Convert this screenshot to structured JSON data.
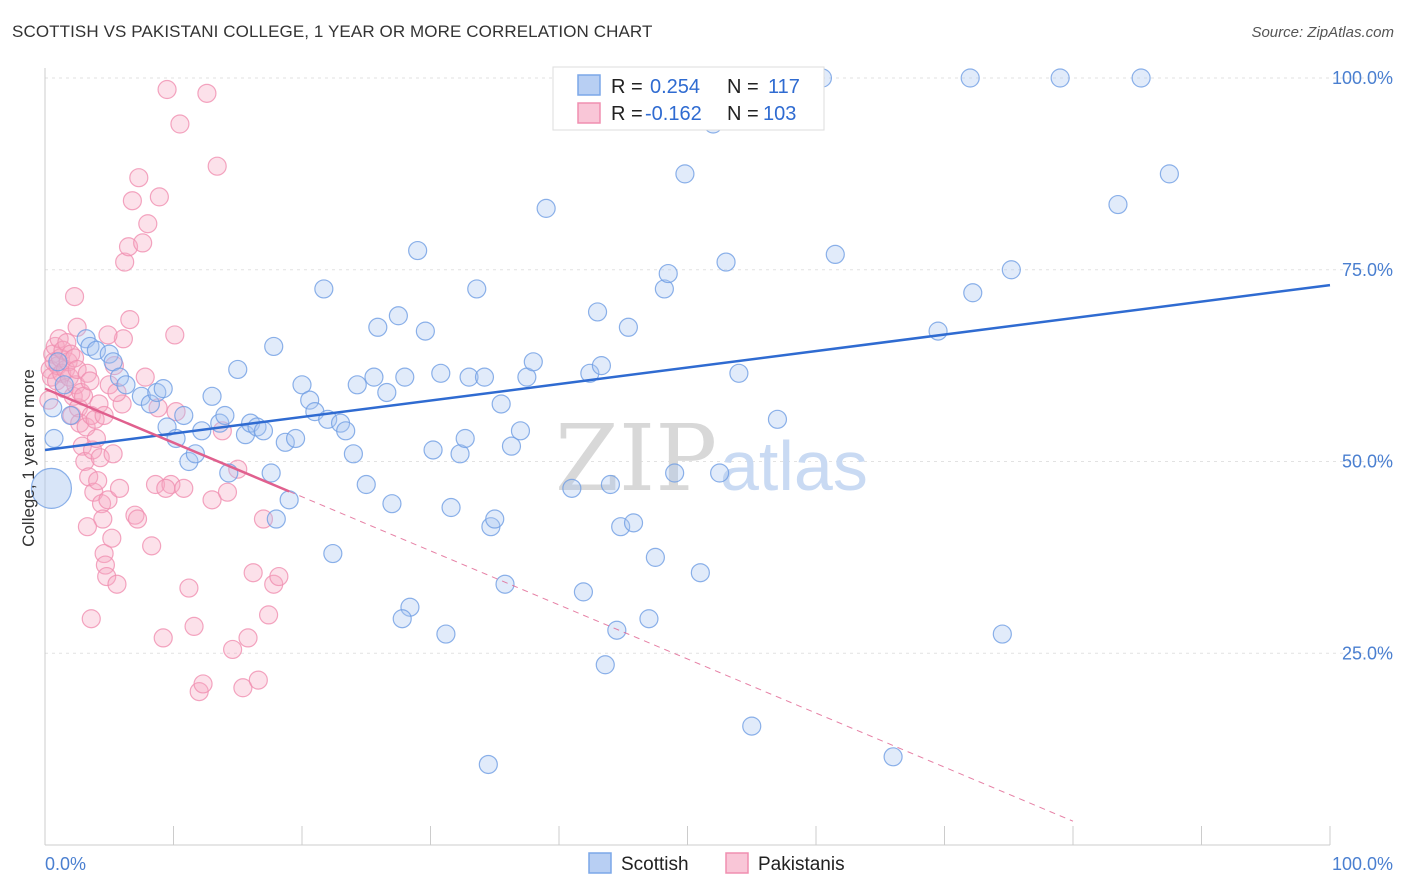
{
  "title": "SCOTTISH VS PAKISTANI COLLEGE, 1 YEAR OR MORE CORRELATION CHART",
  "source": "Source: ZipAtlas.com",
  "watermark": {
    "zip": "ZIP",
    "atlas": "atlas"
  },
  "legend_top": {
    "rows": [
      {
        "r_label": "R =",
        "r_value": "0.254",
        "n_label": "N =",
        "n_value": "117"
      },
      {
        "r_label": "R =",
        "r_value": "-0.162",
        "n_label": "N =",
        "n_value": "103"
      }
    ]
  },
  "colors": {
    "blue": "#7ba7e8",
    "blue_line": "#2f6bd1",
    "pink": "#f08fb0",
    "pink_line": "#e0608e"
  },
  "chart_data": {
    "type": "scatter",
    "title": "SCOTTISH VS PAKISTANI COLLEGE, 1 YEAR OR MORE CORRELATION CHART",
    "xlabel": "",
    "ylabel": "College, 1 year or more",
    "xlim": [
      0,
      100
    ],
    "ylim": [
      0,
      100
    ],
    "x_tick_labels": [
      "0.0%",
      "100.0%"
    ],
    "y_tick_labels": [
      "25.0%",
      "50.0%",
      "75.0%",
      "100.0%"
    ],
    "y_ticks": [
      25,
      50,
      75,
      100
    ],
    "grid": true,
    "legend_position": "top-center",
    "series": [
      {
        "name": "Scottish",
        "color": "#7ba7e8",
        "r": 0.254,
        "n": 117,
        "trend": {
          "x0": 0,
          "y0": 51.5,
          "x1": 100,
          "y1": 73
        },
        "points": [
          [
            0.5,
            46.5
          ],
          [
            0.7,
            53
          ],
          [
            0.6,
            57
          ],
          [
            1,
            63
          ],
          [
            1.5,
            60
          ],
          [
            2,
            56
          ],
          [
            3.2,
            66
          ],
          [
            3.5,
            65
          ],
          [
            4,
            64.5
          ],
          [
            5,
            64
          ],
          [
            5.3,
            63
          ],
          [
            5.8,
            61
          ],
          [
            6.3,
            60
          ],
          [
            7.5,
            58.5
          ],
          [
            8.2,
            57.5
          ],
          [
            8.7,
            59
          ],
          [
            9.2,
            59.5
          ],
          [
            9.5,
            54.5
          ],
          [
            10.2,
            53
          ],
          [
            10.8,
            56
          ],
          [
            11.2,
            50
          ],
          [
            11.7,
            51
          ],
          [
            12.2,
            54
          ],
          [
            13,
            58.5
          ],
          [
            13.6,
            55
          ],
          [
            14,
            56
          ],
          [
            14.3,
            48.5
          ],
          [
            15,
            62
          ],
          [
            15.6,
            53.5
          ],
          [
            16,
            55
          ],
          [
            16.5,
            54.5
          ],
          [
            17,
            54
          ],
          [
            17.6,
            48.5
          ],
          [
            17.8,
            65
          ],
          [
            18,
            42.5
          ],
          [
            18.7,
            52.5
          ],
          [
            19,
            45
          ],
          [
            19.5,
            53
          ],
          [
            20,
            60
          ],
          [
            20.6,
            58
          ],
          [
            21,
            56.5
          ],
          [
            21.7,
            72.5
          ],
          [
            22,
            55.5
          ],
          [
            22.4,
            38
          ],
          [
            23,
            55
          ],
          [
            23.4,
            54
          ],
          [
            24,
            51
          ],
          [
            24.3,
            60
          ],
          [
            25,
            47
          ],
          [
            25.6,
            61
          ],
          [
            25.9,
            67.5
          ],
          [
            26.6,
            59
          ],
          [
            27,
            44.5
          ],
          [
            27.5,
            69
          ],
          [
            28,
            61
          ],
          [
            28.4,
            31
          ],
          [
            29,
            77.5
          ],
          [
            29.6,
            67
          ],
          [
            30.2,
            51.5
          ],
          [
            30.8,
            61.5
          ],
          [
            31.2,
            27.5
          ],
          [
            31.6,
            44
          ],
          [
            32.3,
            51
          ],
          [
            32.7,
            53
          ],
          [
            33,
            61
          ],
          [
            33.6,
            72.5
          ],
          [
            34.2,
            61
          ],
          [
            34.7,
            41.5
          ],
          [
            35,
            42.5
          ],
          [
            35.5,
            57.5
          ],
          [
            35.8,
            34
          ],
          [
            36.3,
            52
          ],
          [
            37,
            54
          ],
          [
            37.5,
            61
          ],
          [
            38,
            63
          ],
          [
            39,
            83
          ],
          [
            41,
            46.5
          ],
          [
            41.5,
            94.5
          ],
          [
            41.9,
            33
          ],
          [
            42.4,
            61.5
          ],
          [
            43,
            69.5
          ],
          [
            43.3,
            62.5
          ],
          [
            43.6,
            23.5
          ],
          [
            44,
            47
          ],
          [
            44.5,
            28
          ],
          [
            44.8,
            41.5
          ],
          [
            45.4,
            67.5
          ],
          [
            45.8,
            42
          ],
          [
            46,
            95.5
          ],
          [
            47,
            29.5
          ],
          [
            47.5,
            37.5
          ],
          [
            48.2,
            72.5
          ],
          [
            48.5,
            74.5
          ],
          [
            49,
            48.5
          ],
          [
            49.8,
            87.5
          ],
          [
            51,
            35.5
          ],
          [
            52,
            94
          ],
          [
            52.5,
            48.5
          ],
          [
            53,
            76
          ],
          [
            54,
            61.5
          ],
          [
            55,
            15.5
          ],
          [
            57,
            55.5
          ],
          [
            59,
            100
          ],
          [
            60.5,
            100
          ],
          [
            61.5,
            77
          ],
          [
            66,
            11.5
          ],
          [
            69.5,
            67
          ],
          [
            72,
            100
          ],
          [
            72.2,
            72
          ],
          [
            74.5,
            27.5
          ],
          [
            75.2,
            75
          ],
          [
            79,
            100
          ],
          [
            83.5,
            83.5
          ],
          [
            85.3,
            100
          ],
          [
            87.5,
            87.5
          ],
          [
            34.5,
            10.5
          ],
          [
            27.8,
            29.5
          ]
        ]
      },
      {
        "name": "Pakistanis",
        "color": "#f08fb0",
        "r": -0.162,
        "n": 103,
        "trend": {
          "x0": 0,
          "y0": 59.5,
          "x1": 100,
          "y1": -11
        },
        "trend_solid_until": 19,
        "points": [
          [
            0.3,
            58
          ],
          [
            0.4,
            62
          ],
          [
            0.5,
            61
          ],
          [
            0.6,
            64
          ],
          [
            0.7,
            63
          ],
          [
            0.8,
            65
          ],
          [
            0.9,
            60.5
          ],
          [
            1,
            62.5
          ],
          [
            1.1,
            66
          ],
          [
            1.2,
            63.5
          ],
          [
            1.3,
            61.5
          ],
          [
            1.4,
            64.5
          ],
          [
            1.5,
            59.5
          ],
          [
            1.6,
            62
          ],
          [
            1.7,
            65.5
          ],
          [
            1.8,
            63
          ],
          [
            1.9,
            61
          ],
          [
            2,
            64
          ],
          [
            2.1,
            56
          ],
          [
            2.2,
            58.5
          ],
          [
            2.3,
            63.5
          ],
          [
            2.4,
            60
          ],
          [
            2.5,
            62
          ],
          [
            2.6,
            57
          ],
          [
            2.7,
            55
          ],
          [
            2.8,
            59
          ],
          [
            2.9,
            52
          ],
          [
            3,
            58.5
          ],
          [
            3.1,
            50
          ],
          [
            3.2,
            54.5
          ],
          [
            3.3,
            61.5
          ],
          [
            3.4,
            48
          ],
          [
            3.5,
            60.5
          ],
          [
            3.6,
            56
          ],
          [
            3.7,
            51.5
          ],
          [
            3.8,
            46
          ],
          [
            3.9,
            55.5
          ],
          [
            4,
            53
          ],
          [
            4.1,
            47.5
          ],
          [
            4.2,
            57.5
          ],
          [
            4.3,
            50.5
          ],
          [
            4.4,
            44.5
          ],
          [
            4.5,
            42.5
          ],
          [
            4.6,
            38
          ],
          [
            4.7,
            36.5
          ],
          [
            4.8,
            35
          ],
          [
            4.9,
            45
          ],
          [
            5,
            60
          ],
          [
            5.2,
            40
          ],
          [
            5.4,
            62.5
          ],
          [
            5.6,
            34
          ],
          [
            5.8,
            46.5
          ],
          [
            6,
            57.5
          ],
          [
            6.2,
            76
          ],
          [
            6.5,
            78
          ],
          [
            6.8,
            84
          ],
          [
            7,
            43
          ],
          [
            7.3,
            87
          ],
          [
            7.6,
            78.5
          ],
          [
            8,
            81
          ],
          [
            8.3,
            39
          ],
          [
            8.6,
            47
          ],
          [
            8.9,
            84.5
          ],
          [
            9.2,
            27
          ],
          [
            9.5,
            98.5
          ],
          [
            9.8,
            47
          ],
          [
            10.1,
            66.5
          ],
          [
            10.5,
            94
          ],
          [
            10.8,
            46.5
          ],
          [
            11.2,
            33.5
          ],
          [
            11.6,
            28.5
          ],
          [
            12,
            20
          ],
          [
            12.3,
            21
          ],
          [
            12.6,
            98
          ],
          [
            13,
            45
          ],
          [
            13.4,
            88.5
          ],
          [
            13.8,
            54
          ],
          [
            14.2,
            46
          ],
          [
            14.6,
            25.5
          ],
          [
            15,
            49
          ],
          [
            15.4,
            20.5
          ],
          [
            15.8,
            27
          ],
          [
            16.2,
            35.5
          ],
          [
            16.6,
            21.5
          ],
          [
            17,
            42.5
          ],
          [
            17.4,
            30
          ],
          [
            17.8,
            34
          ],
          [
            18.2,
            35
          ],
          [
            2.3,
            71.5
          ],
          [
            2.5,
            67.5
          ],
          [
            3.3,
            41.5
          ],
          [
            3.6,
            29.5
          ],
          [
            4.6,
            56
          ],
          [
            5.3,
            51
          ],
          [
            6.6,
            68.5
          ],
          [
            7.2,
            42.5
          ],
          [
            7.8,
            61
          ],
          [
            8.8,
            57
          ],
          [
            9.4,
            46.5
          ],
          [
            10.2,
            56.5
          ],
          [
            6.1,
            66
          ],
          [
            5.6,
            59
          ],
          [
            4.9,
            66.5
          ]
        ]
      }
    ]
  },
  "bottom_legend": [
    {
      "label": "Scottish"
    },
    {
      "label": "Pakistanis"
    }
  ]
}
